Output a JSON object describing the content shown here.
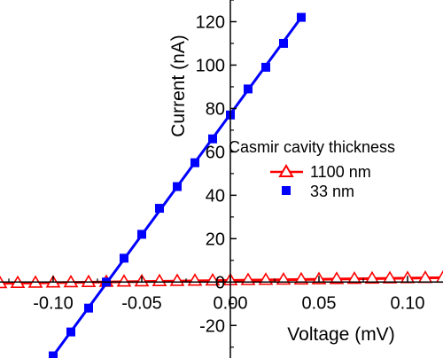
{
  "chart_data": {
    "type": "scatter",
    "title": "",
    "xlabel": "Voltage (mV)",
    "ylabel": "Current (nA)",
    "xlim": [
      -0.13,
      0.12
    ],
    "ylim": [
      -35,
      130
    ],
    "x_ticks": [
      -0.1,
      -0.05,
      0.0,
      0.05,
      0.1
    ],
    "x_tick_labels": [
      "-0.10",
      "-0.05",
      "0.00",
      "0.05",
      "0.10"
    ],
    "y_ticks": [
      -20,
      0,
      20,
      40,
      60,
      80,
      100,
      120
    ],
    "y_tick_labels": [
      "-20",
      "0",
      "20",
      "40",
      "60",
      "80",
      "100",
      "120"
    ],
    "grid": false,
    "legend": {
      "title": "Casmir cavity thickness",
      "placement": "center-right"
    },
    "series": [
      {
        "name": "1100 nm",
        "marker": "open-triangle",
        "color": "#ff0000",
        "x": [
          -0.13,
          -0.12,
          -0.11,
          -0.1,
          -0.09,
          -0.08,
          -0.07,
          -0.06,
          -0.05,
          -0.04,
          -0.03,
          -0.02,
          -0.01,
          0.0,
          0.01,
          0.02,
          0.03,
          0.04,
          0.05,
          0.06,
          0.07,
          0.08,
          0.09,
          0.1,
          0.11,
          0.12
        ],
        "y": [
          -0.5,
          -0.4,
          -0.3,
          -0.2,
          -0.1,
          0.0,
          0.1,
          0.2,
          0.3,
          0.4,
          0.5,
          0.6,
          0.7,
          0.8,
          0.9,
          1.0,
          1.1,
          1.2,
          1.3,
          1.4,
          1.5,
          1.6,
          1.7,
          1.8,
          1.9,
          2.0
        ],
        "fit_line": {
          "x": [
            -0.13,
            0.12
          ],
          "y": [
            -0.6,
            2.0
          ]
        }
      },
      {
        "name": "33 nm",
        "marker": "filled-square",
        "color": "#0000ff",
        "x": [
          -0.1,
          -0.09,
          -0.08,
          -0.07,
          -0.06,
          -0.05,
          -0.04,
          -0.03,
          -0.02,
          -0.01,
          0.0,
          0.01,
          0.02,
          0.03,
          0.04
        ],
        "y": [
          -34,
          -23,
          -12,
          0,
          11,
          22,
          34,
          44,
          55,
          66,
          77,
          89,
          99,
          110,
          122
        ],
        "fit_line": {
          "x": [
            -0.1,
            0.04
          ],
          "y": [
            -34,
            122
          ]
        }
      }
    ]
  }
}
